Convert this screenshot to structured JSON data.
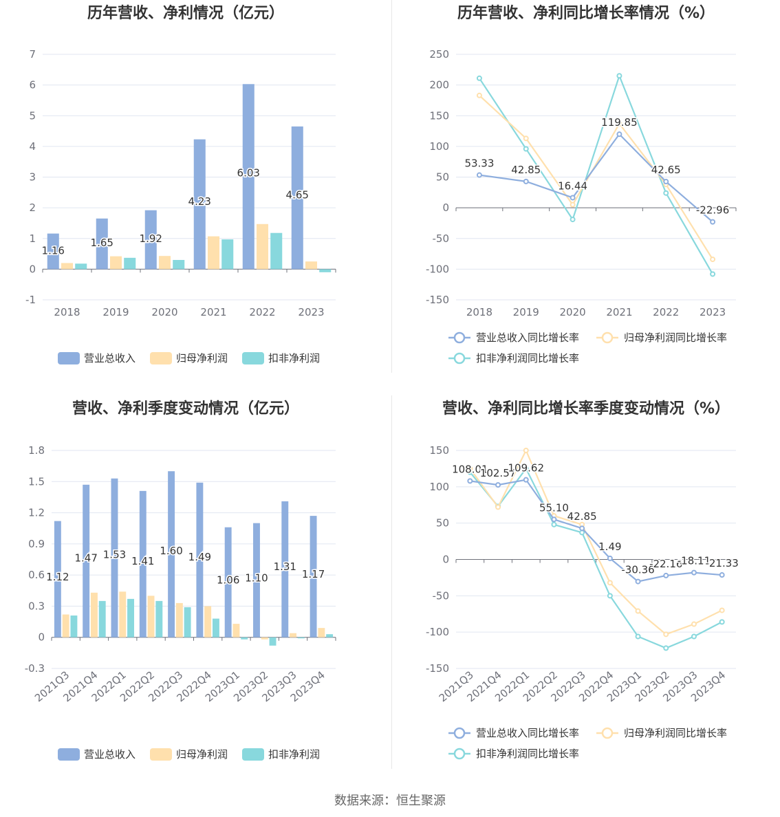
{
  "colors": {
    "revenue": "#8eaede",
    "netprofit": "#ffe0ad",
    "deducted": "#88d8dd"
  },
  "source": "数据来源：恒生聚源",
  "chart_data": [
    {
      "id": "annual_bar",
      "type": "bar",
      "title": "历年营收、净利情况（亿元）",
      "categories": [
        "2018",
        "2019",
        "2020",
        "2021",
        "2022",
        "2023"
      ],
      "ylim": [
        -1,
        7
      ],
      "yticks": [
        "-1",
        "0",
        "1",
        "2",
        "3",
        "4",
        "5",
        "6",
        "7"
      ],
      "series": [
        {
          "name": "营业总收入",
          "values": [
            1.16,
            1.65,
            1.92,
            4.23,
            6.03,
            4.65
          ],
          "labels": [
            "1.16",
            "1.65",
            "1.92",
            "4.23",
            "6.03",
            "4.65"
          ]
        },
        {
          "name": "归母净利润",
          "values": [
            0.2,
            0.42,
            0.43,
            1.07,
            1.47,
            0.25
          ]
        },
        {
          "name": "扣非净利润",
          "values": [
            0.18,
            0.37,
            0.3,
            0.97,
            1.18,
            -0.1
          ]
        }
      ],
      "legend": "bottom"
    },
    {
      "id": "annual_line",
      "type": "line",
      "title": "历年营收、净利同比增长率情况（%）",
      "categories": [
        "2018",
        "2019",
        "2020",
        "2021",
        "2022",
        "2023"
      ],
      "ylim": [
        -150,
        250
      ],
      "yticks": [
        "-150",
        "-100",
        "-50",
        "0",
        "50",
        "100",
        "150",
        "200",
        "250"
      ],
      "series": [
        {
          "name": "营业总收入同比增长率",
          "values": [
            53.33,
            42.85,
            16.44,
            119.85,
            42.65,
            -22.96
          ],
          "labels": [
            "53.33",
            "42.85",
            "16.44",
            "119.85",
            "42.65",
            "-22.96"
          ]
        },
        {
          "name": "归母净利润同比增长率",
          "values": [
            183,
            113,
            5,
            137,
            38,
            -84
          ]
        },
        {
          "name": "扣非净利润同比增长率",
          "values": [
            211,
            96,
            -19,
            215,
            24,
            -108
          ]
        }
      ],
      "legend": "bottom"
    },
    {
      "id": "quarter_bar",
      "type": "bar",
      "title": "营收、净利季度变动情况（亿元）",
      "categories": [
        "2021Q3",
        "2021Q4",
        "2022Q1",
        "2022Q2",
        "2022Q3",
        "2022Q4",
        "2023Q1",
        "2023Q2",
        "2023Q3",
        "2023Q4"
      ],
      "ylim": [
        -0.3,
        1.8
      ],
      "yticks": [
        "-0.3",
        "0",
        "0.3",
        "0.6",
        "0.9",
        "1.2",
        "1.5",
        "1.8"
      ],
      "series": [
        {
          "name": "营业总收入",
          "values": [
            1.12,
            1.47,
            1.53,
            1.41,
            1.6,
            1.49,
            1.06,
            1.1,
            1.31,
            1.17
          ],
          "labels": [
            "1.12",
            "1.47",
            "1.53",
            "1.41",
            "1.60",
            "1.49",
            "1.06",
            "1.10",
            "1.31",
            "1.17"
          ]
        },
        {
          "name": "归母净利润",
          "values": [
            0.22,
            0.43,
            0.44,
            0.4,
            0.33,
            0.3,
            0.13,
            -0.02,
            0.04,
            0.09
          ]
        },
        {
          "name": "扣非净利润",
          "values": [
            0.21,
            0.35,
            0.37,
            0.35,
            0.29,
            0.18,
            -0.02,
            -0.08,
            -0.01,
            0.03
          ]
        }
      ],
      "legend": "bottom"
    },
    {
      "id": "quarter_line",
      "type": "line",
      "title": "营收、净利同比增长率季度变动情况（%）",
      "categories": [
        "2021Q3",
        "2021Q4",
        "2022Q1",
        "2022Q2",
        "2022Q3",
        "2022Q4",
        "2023Q1",
        "2023Q2",
        "2023Q3",
        "2023Q4"
      ],
      "ylim": [
        -150,
        150
      ],
      "yticks": [
        "-150",
        "-100",
        "-50",
        "0",
        "50",
        "100",
        "150"
      ],
      "series": [
        {
          "name": "营业总收入同比增长率",
          "values": [
            108.01,
            102.57,
            109.62,
            55.1,
            42.85,
            1.49,
            -30.36,
            -22.16,
            -18.11,
            -21.33
          ],
          "labels": [
            "108.01",
            "102.57",
            "109.62",
            "55.10",
            "42.85",
            "1.49",
            "-30.36",
            "-22.16",
            "-18.11",
            "-21.33"
          ]
        },
        {
          "name": "归母净利润同比增长率",
          "values": [
            125,
            72,
            150,
            60,
            48,
            -32,
            -71,
            -103,
            -89,
            -70
          ]
        },
        {
          "name": "扣非净利润同比增长率",
          "values": [
            120,
            73,
            125,
            48,
            37,
            -50,
            -106,
            -122,
            -106,
            -86
          ]
        }
      ],
      "legend": "bottom"
    }
  ]
}
